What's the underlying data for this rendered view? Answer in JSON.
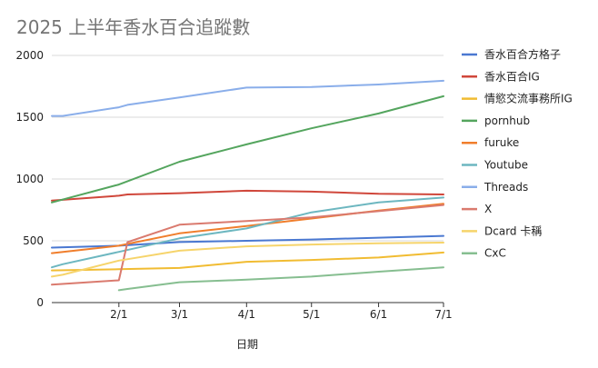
{
  "chart_data": {
    "type": "line",
    "title": "2025 上半年香水百合追蹤數",
    "xlabel": "日期",
    "ylabel": "",
    "ylim": [
      0,
      2000
    ],
    "yticks": [
      "0",
      "500",
      "1000",
      "1500",
      "2000"
    ],
    "xticks": [
      {
        "label": "2/1",
        "x": 31
      },
      {
        "label": "3/1",
        "x": 59
      },
      {
        "label": "4/1",
        "x": 90
      },
      {
        "label": "5/1",
        "x": 120
      },
      {
        "label": "6/1",
        "x": 151
      },
      {
        "label": "7/1",
        "x": 181
      }
    ],
    "xlim": [
      0,
      181
    ],
    "x_unit": "days since 2025-01-01",
    "grid": true,
    "legend_position": "right",
    "series": [
      {
        "name": "香水百合方格子",
        "color": "#4A78D1",
        "points": [
          [
            0,
            445
          ],
          [
            31,
            460
          ],
          [
            59,
            490
          ],
          [
            90,
            500
          ],
          [
            120,
            510
          ],
          [
            151,
            525
          ],
          [
            181,
            540
          ]
        ]
      },
      {
        "name": "香水百合IG",
        "color": "#D0473B",
        "points": [
          [
            0,
            825
          ],
          [
            31,
            865
          ],
          [
            35,
            875
          ],
          [
            59,
            885
          ],
          [
            90,
            905
          ],
          [
            120,
            898
          ],
          [
            151,
            880
          ],
          [
            181,
            875
          ]
        ]
      },
      {
        "name": "情慾交流事務所IG",
        "color": "#F1BC32",
        "points": [
          [
            0,
            260
          ],
          [
            31,
            270
          ],
          [
            59,
            280
          ],
          [
            90,
            330
          ],
          [
            120,
            345
          ],
          [
            151,
            365
          ],
          [
            181,
            405
          ]
        ]
      },
      {
        "name": "pornhub",
        "color": "#54A55E",
        "points": [
          [
            0,
            810
          ],
          [
            31,
            955
          ],
          [
            59,
            1140
          ],
          [
            90,
            1280
          ],
          [
            120,
            1410
          ],
          [
            151,
            1530
          ],
          [
            181,
            1670
          ]
        ]
      },
      {
        "name": "furuke",
        "color": "#F07E2C",
        "points": [
          [
            0,
            400
          ],
          [
            31,
            460
          ],
          [
            59,
            560
          ],
          [
            90,
            620
          ],
          [
            120,
            680
          ],
          [
            151,
            745
          ],
          [
            181,
            800
          ]
        ]
      },
      {
        "name": "Youtube",
        "color": "#6DB7C0",
        "points": [
          [
            0,
            285
          ],
          [
            5,
            310
          ],
          [
            31,
            410
          ],
          [
            59,
            520
          ],
          [
            90,
            600
          ],
          [
            120,
            730
          ],
          [
            151,
            810
          ],
          [
            181,
            850
          ]
        ]
      },
      {
        "name": "Threads",
        "color": "#8AAEEA",
        "points": [
          [
            0,
            1510
          ],
          [
            5,
            1510
          ],
          [
            31,
            1580
          ],
          [
            35,
            1600
          ],
          [
            59,
            1660
          ],
          [
            90,
            1740
          ],
          [
            120,
            1745
          ],
          [
            151,
            1765
          ],
          [
            181,
            1795
          ]
        ]
      },
      {
        "name": "X",
        "color": "#DA7A6E",
        "points": [
          [
            0,
            145
          ],
          [
            31,
            180
          ],
          [
            35,
            490
          ],
          [
            59,
            630
          ],
          [
            90,
            660
          ],
          [
            120,
            690
          ],
          [
            151,
            740
          ],
          [
            181,
            790
          ]
        ]
      },
      {
        "name": "Dcard 卡稱",
        "color": "#F6D46B",
        "points": [
          [
            0,
            210
          ],
          [
            5,
            225
          ],
          [
            31,
            340
          ],
          [
            59,
            420
          ],
          [
            90,
            455
          ],
          [
            120,
            470
          ],
          [
            151,
            480
          ],
          [
            181,
            485
          ]
        ]
      },
      {
        "name": "CxC",
        "color": "#86BE90",
        "points": [
          [
            31,
            100
          ],
          [
            35,
            110
          ],
          [
            59,
            165
          ],
          [
            90,
            185
          ],
          [
            120,
            210
          ],
          [
            151,
            250
          ],
          [
            181,
            285
          ]
        ]
      }
    ]
  }
}
